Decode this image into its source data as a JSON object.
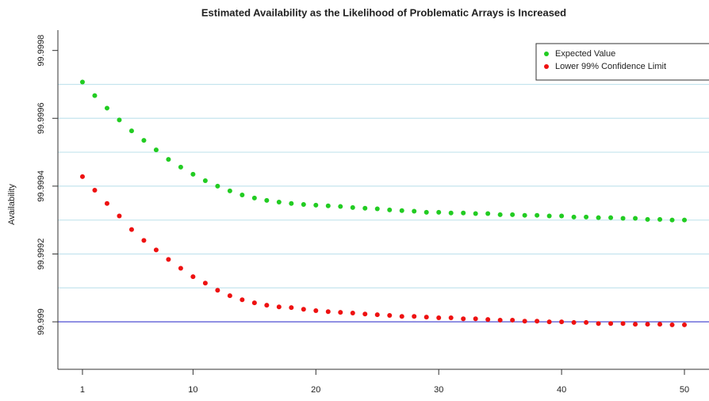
{
  "chart_data": {
    "type": "scatter",
    "title": "Estimated Availability as the Likelihood of Problematic Arrays is Increased",
    "y_label": "Availability",
    "x": [
      1,
      2,
      3,
      4,
      5,
      6,
      7,
      8,
      9,
      10,
      11,
      12,
      13,
      14,
      15,
      16,
      17,
      18,
      19,
      20,
      21,
      22,
      23,
      24,
      25,
      26,
      27,
      28,
      29,
      30,
      31,
      32,
      33,
      34,
      35,
      36,
      37,
      38,
      39,
      40,
      41,
      42,
      43,
      44,
      45,
      46,
      47,
      48,
      49,
      50
    ],
    "series": [
      {
        "name": "Expected Value",
        "color": "#22cc22",
        "values": [
          99.999707,
          99.999667,
          99.99963,
          99.999595,
          99.999563,
          99.999535,
          99.999507,
          99.999479,
          99.999456,
          99.999435,
          99.999416,
          99.9994,
          99.999386,
          99.999374,
          99.999365,
          99.999358,
          99.999353,
          99.999349,
          99.999346,
          99.999344,
          99.999342,
          99.99934,
          99.999337,
          99.999335,
          99.999333,
          99.99933,
          99.999328,
          99.999326,
          99.999323,
          99.999323,
          99.999321,
          99.999321,
          99.999319,
          99.999319,
          99.999316,
          99.999316,
          99.999314,
          99.999314,
          99.999312,
          99.999312,
          99.999309,
          99.999309,
          99.999307,
          99.999307,
          99.999305,
          99.999305,
          99.999302,
          99.999302,
          99.9993,
          99.9993
        ]
      },
      {
        "name": "Lower 99% Confidence Limit",
        "color": "#ee1111",
        "values": [
          99.999428,
          99.999388,
          99.999349,
          99.999312,
          99.999272,
          99.99924,
          99.999212,
          99.999184,
          99.999158,
          99.999133,
          99.999114,
          99.999093,
          99.999077,
          99.999065,
          99.999056,
          99.999049,
          99.999044,
          99.999042,
          99.999037,
          99.999033,
          99.99903,
          99.999028,
          99.999026,
          99.999023,
          99.999021,
          99.999019,
          99.999016,
          99.999016,
          99.999014,
          99.999012,
          99.999012,
          99.999009,
          99.999009,
          99.999007,
          99.999005,
          99.999005,
          99.999002,
          99.999002,
          99.999,
          99.999,
          99.998998,
          99.998998,
          99.998995,
          99.998995,
          99.998995,
          99.998993,
          99.998993,
          99.998993,
          99.998991,
          99.998991
        ]
      }
    ],
    "xlim": [
      -1,
      52
    ],
    "xticks": [
      1,
      10,
      20,
      30,
      40,
      50
    ],
    "ylim": [
      99.99886,
      99.99986
    ],
    "yticks": [
      99.999,
      99.9992,
      99.9994,
      99.9996,
      99.9998
    ],
    "gridlines": [
      99.9991,
      99.9992,
      99.9993,
      99.9994,
      99.9995,
      99.9996,
      99.9997
    ],
    "grid_color": "#c4e4ee",
    "reference_line": 99.999,
    "reference_color": "#3a3acc",
    "legend": "topright"
  }
}
